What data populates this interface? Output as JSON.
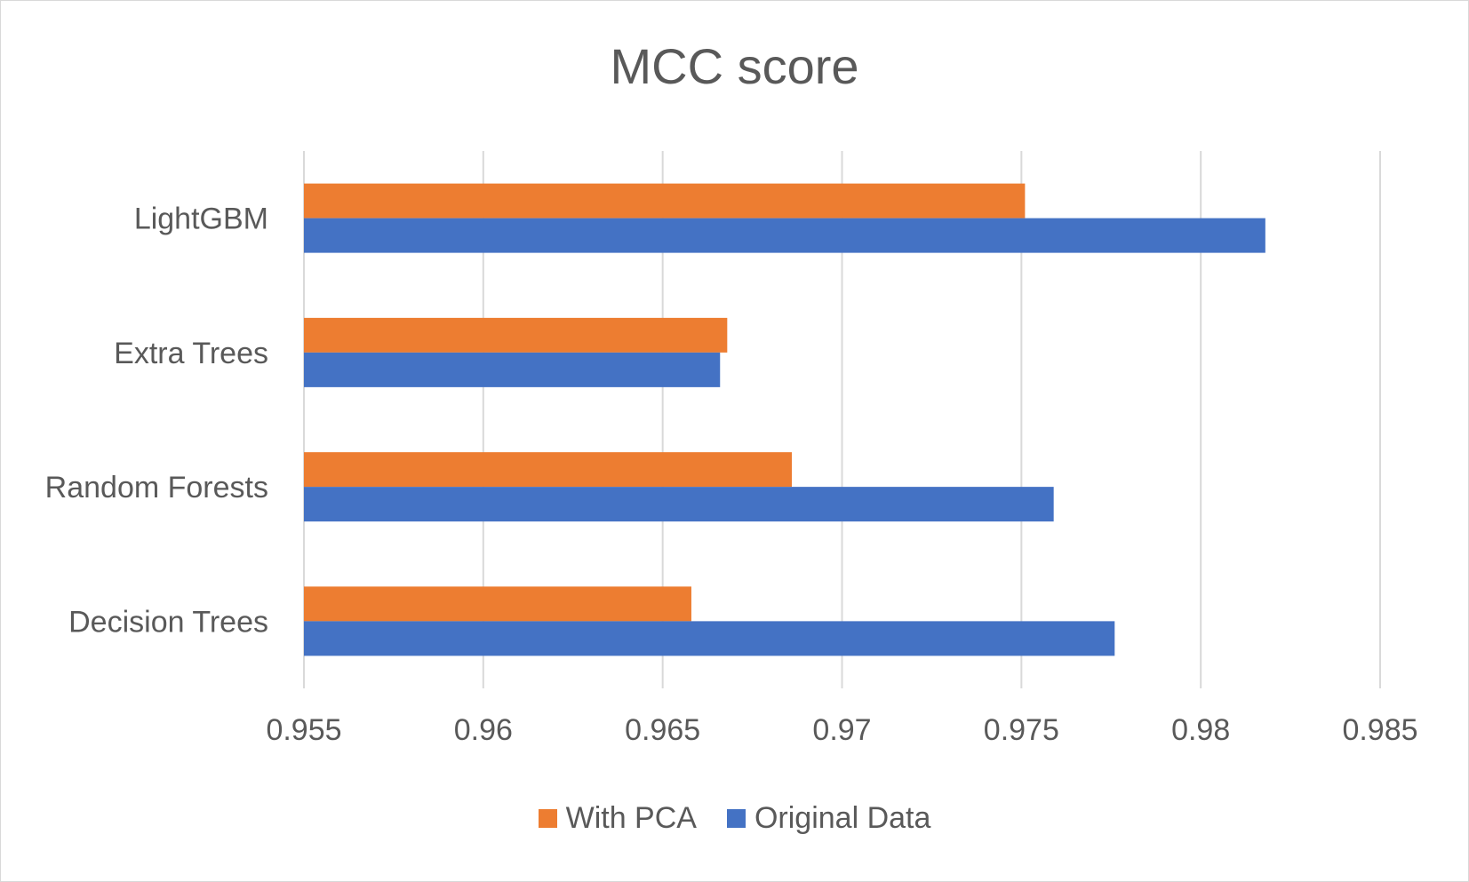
{
  "chart_data": {
    "type": "bar",
    "orientation": "horizontal",
    "title": "MCC score",
    "categories": [
      "LightGBM",
      "Extra Trees",
      "Random Forests",
      "Decision Trees"
    ],
    "series": [
      {
        "name": "With PCA",
        "color": "#ED7D31",
        "values": [
          0.9751,
          0.9668,
          0.9686,
          0.9658
        ]
      },
      {
        "name": "Original Data",
        "color": "#4472C4",
        "values": [
          0.9818,
          0.9666,
          0.9759,
          0.9776
        ]
      }
    ],
    "xlim": [
      0.955,
      0.985
    ],
    "xticks": [
      0.955,
      0.96,
      0.965,
      0.97,
      0.975,
      0.98,
      0.985
    ],
    "xtick_labels": [
      "0.955",
      "0.96",
      "0.965",
      "0.97",
      "0.975",
      "0.98",
      "0.985"
    ],
    "grid": "vertical",
    "legend_position": "bottom",
    "xlabel": "",
    "ylabel": ""
  }
}
